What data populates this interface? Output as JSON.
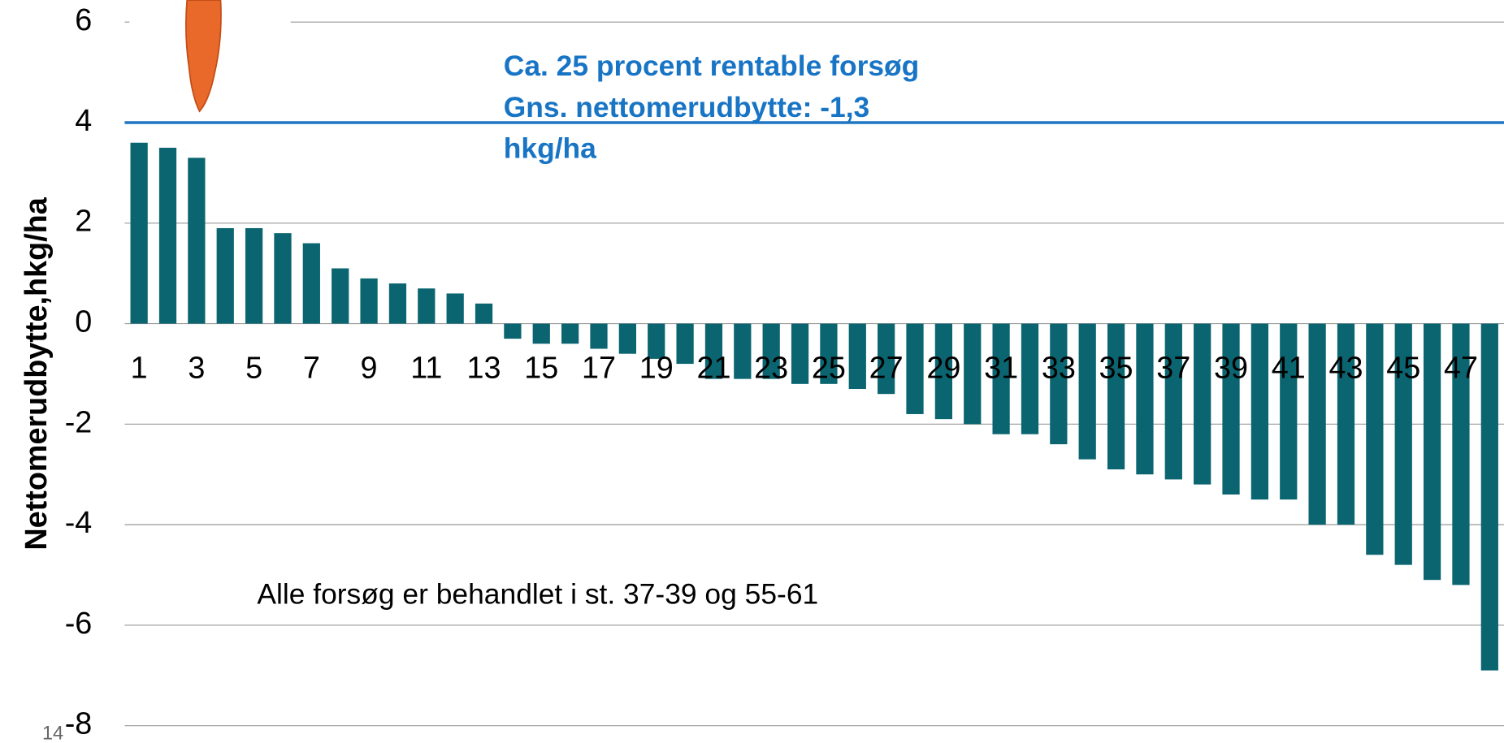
{
  "chart_data": {
    "type": "bar",
    "y_label": "Nettomerudbytte,hkg/ha",
    "categories": [
      1,
      null,
      3,
      null,
      5,
      null,
      7,
      null,
      9,
      null,
      11,
      null,
      13,
      null,
      15,
      null,
      17,
      null,
      19,
      null,
      21,
      null,
      23,
      null,
      25,
      null,
      27,
      null,
      29,
      null,
      31,
      null,
      33,
      null,
      35,
      null,
      37,
      null,
      39,
      null,
      41,
      null,
      43,
      null,
      45,
      null,
      47,
      null
    ],
    "values": [
      3.6,
      3.5,
      3.3,
      1.9,
      1.9,
      1.8,
      1.6,
      1.1,
      0.9,
      0.8,
      0.7,
      0.6,
      0.4,
      -0.3,
      -0.4,
      -0.4,
      -0.5,
      -0.6,
      -0.7,
      -0.8,
      -1.1,
      -1.1,
      -1.1,
      -1.2,
      -1.2,
      -1.3,
      -1.4,
      -1.8,
      -1.9,
      -2.0,
      -2.2,
      -2.2,
      -2.4,
      -2.7,
      -2.9,
      -3.0,
      -3.1,
      -3.2,
      -3.4,
      -3.5,
      -3.5,
      -4.0,
      -4.0,
      -4.6,
      -4.8,
      -5.1,
      -5.2,
      -6.9
    ],
    "color": "#0b6570",
    "ylim": [
      -8,
      6
    ],
    "yticks": [
      -8,
      -6,
      -4,
      -2,
      0,
      2,
      4,
      6
    ],
    "grid": true,
    "reference_line": {
      "value": 4,
      "color": "#1f77c4"
    },
    "annotation": [
      "Ca. 25 procent rentable forsøg",
      "Gns. nettomerudbytte: -1,3",
      "hkg/ha"
    ],
    "note": "Alle forsøg er behandlet i st. 37-39 og 55-61"
  },
  "page_number": "14"
}
